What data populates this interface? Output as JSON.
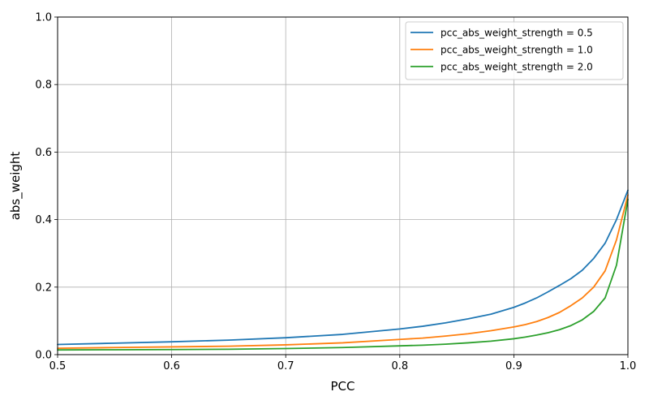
{
  "chart_data": {
    "type": "line",
    "title": "",
    "xlabel": "PCC",
    "ylabel": "abs_weight",
    "xlim": [
      0.5,
      1.0
    ],
    "ylim": [
      0.0,
      1.0
    ],
    "xticks": [
      "0.5",
      "0.6",
      "0.7",
      "0.8",
      "0.9",
      "1.0"
    ],
    "yticks": [
      "0.0",
      "0.2",
      "0.4",
      "0.6",
      "0.8",
      "1.0"
    ],
    "grid": true,
    "legend_position": "top-right",
    "series": [
      {
        "name": "pcc_abs_weight_strength = 0.5",
        "color": "#1f77b4",
        "x": [
          0.5,
          0.55,
          0.6,
          0.65,
          0.7,
          0.75,
          0.8,
          0.82,
          0.84,
          0.86,
          0.88,
          0.9,
          0.91,
          0.92,
          0.93,
          0.94,
          0.95,
          0.96,
          0.97,
          0.98,
          0.99,
          1.0
        ],
        "y": [
          0.03,
          0.034,
          0.038,
          0.043,
          0.05,
          0.06,
          0.076,
          0.084,
          0.094,
          0.106,
          0.12,
          0.14,
          0.153,
          0.168,
          0.186,
          0.205,
          0.225,
          0.25,
          0.285,
          0.33,
          0.4,
          0.487
        ]
      },
      {
        "name": "pcc_abs_weight_strength = 1.0",
        "color": "#ff7f0e",
        "x": [
          0.5,
          0.55,
          0.6,
          0.65,
          0.7,
          0.75,
          0.8,
          0.82,
          0.84,
          0.86,
          0.88,
          0.9,
          0.91,
          0.92,
          0.93,
          0.94,
          0.95,
          0.96,
          0.97,
          0.98,
          0.99,
          1.0
        ],
        "y": [
          0.019,
          0.021,
          0.023,
          0.025,
          0.029,
          0.035,
          0.045,
          0.049,
          0.055,
          0.062,
          0.071,
          0.082,
          0.089,
          0.098,
          0.11,
          0.125,
          0.145,
          0.168,
          0.2,
          0.248,
          0.34,
          0.473
        ]
      },
      {
        "name": "pcc_abs_weight_strength = 2.0",
        "color": "#2ca02c",
        "x": [
          0.5,
          0.55,
          0.6,
          0.65,
          0.7,
          0.75,
          0.8,
          0.82,
          0.84,
          0.86,
          0.88,
          0.9,
          0.91,
          0.92,
          0.93,
          0.94,
          0.95,
          0.96,
          0.97,
          0.98,
          0.99,
          1.0
        ],
        "y": [
          0.014,
          0.0145,
          0.015,
          0.016,
          0.018,
          0.021,
          0.026,
          0.028,
          0.031,
          0.035,
          0.04,
          0.047,
          0.052,
          0.058,
          0.065,
          0.074,
          0.086,
          0.103,
          0.128,
          0.168,
          0.265,
          0.46
        ]
      }
    ]
  }
}
